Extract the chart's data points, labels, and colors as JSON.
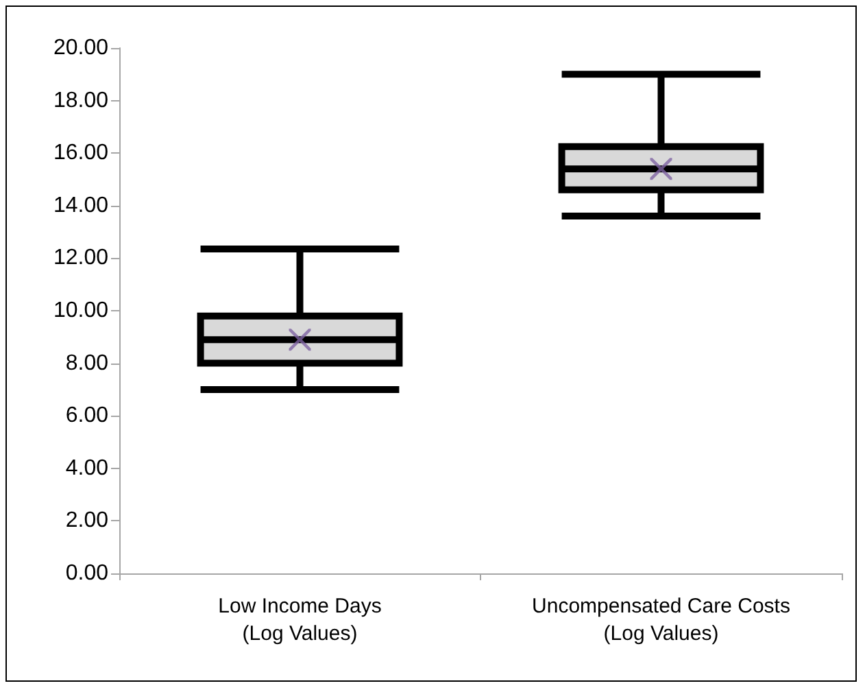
{
  "chart_data": {
    "type": "box",
    "categories": [
      "Low Income Days\n(Log Values)",
      "Uncompensated Care Costs\n(Log Values)"
    ],
    "series": [
      {
        "color": "#d9d9d9",
        "boxes": [
          {
            "low": 7.0,
            "q1": 8.0,
            "median": 8.9,
            "q3": 9.8,
            "high": 12.35
          },
          {
            "low": 13.6,
            "q1": 14.6,
            "median": 15.4,
            "q3": 16.25,
            "high": 19.0
          }
        ]
      },
      {
        "type": "scatter",
        "x": [
          "Low Income Days\n(Log Values)",
          "Uncompensated Care Costs\n(Log Values)"
        ],
        "values": [
          8.9,
          15.4
        ],
        "color": "#8064a2",
        "marker": "cross"
      }
    ],
    "grid": false,
    "ylim": [
      0,
      20
    ],
    "yticks": [
      {
        "value": 0,
        "label": "0.00"
      },
      {
        "value": 2,
        "label": "2.00"
      },
      {
        "value": 4,
        "label": "4.00"
      },
      {
        "value": 6,
        "label": "6.00"
      },
      {
        "value": 8,
        "label": "8.00"
      },
      {
        "value": 10,
        "label": "10.00"
      },
      {
        "value": 12,
        "label": "12.00"
      },
      {
        "value": 14,
        "label": "14.00"
      },
      {
        "value": 16,
        "label": "16.00"
      },
      {
        "value": 18,
        "label": "18.00"
      },
      {
        "value": 20,
        "label": "20.00"
      }
    ]
  }
}
